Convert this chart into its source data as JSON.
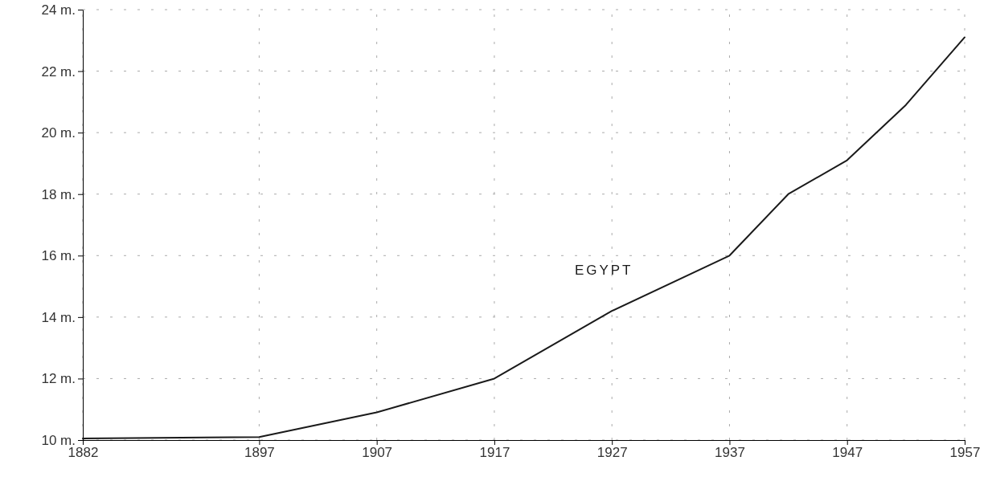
{
  "chart_data": {
    "type": "line",
    "x": [
      1882,
      1897,
      1907,
      1917,
      1927,
      1937,
      1942,
      1947,
      1952,
      1957
    ],
    "series": [
      {
        "name": "EGYPT",
        "color": "#1a1a1a",
        "values": [
          10.05,
          10.1,
          10.9,
          12.0,
          14.2,
          16.0,
          18.0,
          19.1,
          20.9,
          23.1
        ]
      }
    ],
    "xlim": [
      1882,
      1957
    ],
    "xticks": [
      1882,
      1897,
      1907,
      1917,
      1927,
      1937,
      1947,
      1957
    ],
    "ylim": [
      10,
      24
    ],
    "yticks": [
      {
        "value": 10,
        "label": "10 m."
      },
      {
        "value": 12,
        "label": "12 m."
      },
      {
        "value": 14,
        "label": "14 m."
      },
      {
        "value": 16,
        "label": "16 m."
      },
      {
        "value": 18,
        "label": "18 m."
      },
      {
        "value": 20,
        "label": "20 m."
      },
      {
        "value": 22,
        "label": "22 m."
      },
      {
        "value": 24,
        "label": "24 m."
      }
    ],
    "grid": true,
    "line_style": "solid",
    "marker": "none"
  }
}
